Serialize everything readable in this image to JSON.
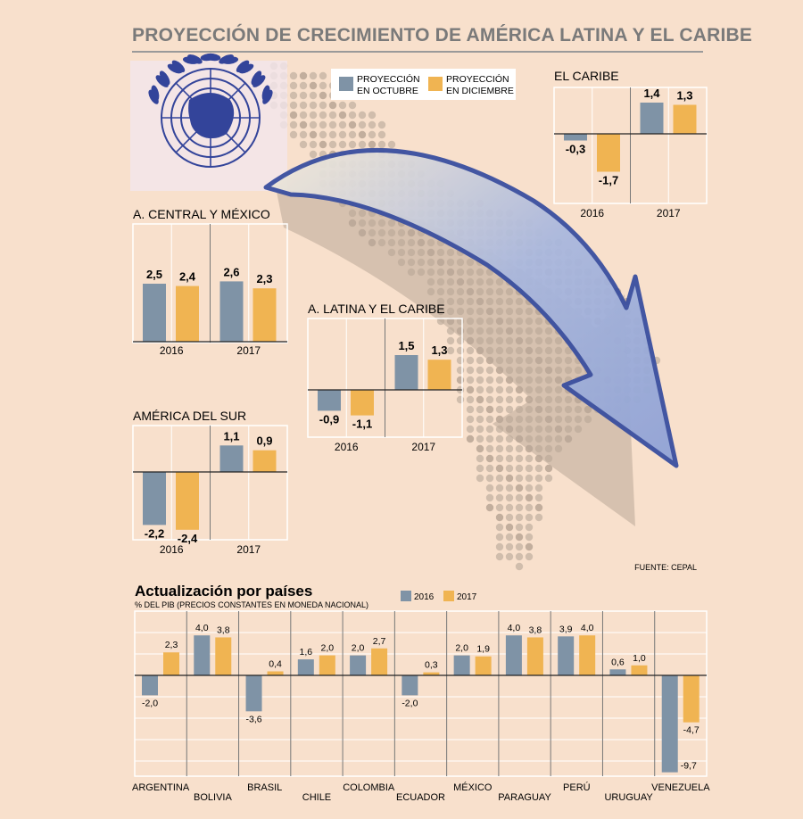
{
  "page": {
    "title": "PROYECCIÓN DE CRECIMIENTO DE AMÉRICA LATINA Y EL CARIBE",
    "source": "FUENTE: CEPAL"
  },
  "colors": {
    "octubre": "#7f93a6",
    "diciembre": "#f0b452",
    "background": "#f8e0cc",
    "arrow": "#3a4fa0"
  },
  "legend_top": {
    "octubre": [
      "PROYECCIÓN",
      "EN OCTUBRE"
    ],
    "diciembre": [
      "PROYECCIÓN",
      "EN DICIEMBRE"
    ]
  },
  "chart_data": [
    {
      "type": "bar",
      "title": "EL CARIBE",
      "categories": [
        "2016",
        "2017"
      ],
      "series": [
        {
          "name": "PROYECCIÓN EN OCTUBRE",
          "values": [
            -0.3,
            1.4
          ]
        },
        {
          "name": "PROYECCIÓN EN DICIEMBRE",
          "values": [
            -1.7,
            1.3
          ]
        }
      ],
      "labels": [
        [
          "-0,3",
          "1,4"
        ],
        [
          "-1,7",
          "1,3"
        ]
      ]
    },
    {
      "type": "bar",
      "title": "A. CENTRAL Y MÉXICO",
      "categories": [
        "2016",
        "2017"
      ],
      "series": [
        {
          "name": "PROYECCIÓN EN OCTUBRE",
          "values": [
            2.5,
            2.6
          ]
        },
        {
          "name": "PROYECCIÓN EN DICIEMBRE",
          "values": [
            2.4,
            2.3
          ]
        }
      ],
      "labels": [
        [
          "2,5",
          "2,6"
        ],
        [
          "2,4",
          "2,3"
        ]
      ]
    },
    {
      "type": "bar",
      "title": "A. LATINA Y EL CARIBE",
      "categories": [
        "2016",
        "2017"
      ],
      "series": [
        {
          "name": "PROYECCIÓN EN OCTUBRE",
          "values": [
            -0.9,
            1.5
          ]
        },
        {
          "name": "PROYECCIÓN EN DICIEMBRE",
          "values": [
            -1.1,
            1.3
          ]
        }
      ],
      "labels": [
        [
          "-0,9",
          "1,5"
        ],
        [
          "-1,1",
          "1,3"
        ]
      ]
    },
    {
      "type": "bar",
      "title": "AMÉRICA DEL SUR",
      "categories": [
        "2016",
        "2017"
      ],
      "series": [
        {
          "name": "PROYECCIÓN EN OCTUBRE",
          "values": [
            -2.2,
            1.1
          ]
        },
        {
          "name": "PROYECCIÓN EN DICIEMBRE",
          "values": [
            -2.4,
            0.9
          ]
        }
      ],
      "labels": [
        [
          "-2,2",
          "1,1"
        ],
        [
          "-2,4",
          "0,9"
        ]
      ]
    },
    {
      "type": "bar",
      "title": "Actualización por países",
      "subtitle": "% DEL PIB (PRECIOS CONSTANTES EN MONEDA NACIONAL)",
      "categories": [
        "ARGENTINA",
        "BOLIVIA",
        "BRASIL",
        "CHILE",
        "COLOMBIA",
        "ECUADOR",
        "MÉXICO",
        "PARAGUAY",
        "PERÚ",
        "URUGUAY",
        "VENEZUELA"
      ],
      "series": [
        {
          "name": "2016",
          "values": [
            -2.0,
            4.0,
            -3.6,
            1.6,
            2.0,
            -2.0,
            2.0,
            4.0,
            3.9,
            0.6,
            -9.7
          ],
          "labels": [
            "-2,0",
            "4,0",
            "-3,6",
            "1,6",
            "2,0",
            "-2,0",
            "2,0",
            "4,0",
            "3,9",
            "0,6",
            "-9,7"
          ]
        },
        {
          "name": "2017",
          "values": [
            2.3,
            3.8,
            0.4,
            2.0,
            2.7,
            0.3,
            1.9,
            3.8,
            4.0,
            1.0,
            -4.7
          ],
          "labels": [
            "2,3",
            "3,8",
            "0,4",
            "2,0",
            "2,7",
            "0,3",
            "1,9",
            "3,8",
            "4,0",
            "1,0",
            "-4,7"
          ]
        }
      ]
    }
  ]
}
